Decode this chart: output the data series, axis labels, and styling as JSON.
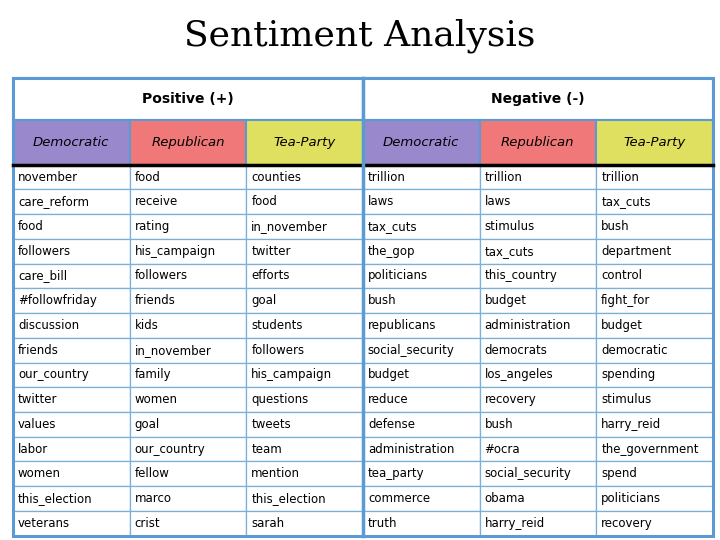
{
  "title": "Sentiment Analysis",
  "group_headers": [
    "Positive (+)",
    "Negative (-)"
  ],
  "row_headers": [
    "Democratic",
    "Republican",
    "Tea-Party",
    "Democratic",
    "Republican",
    "Tea-Party"
  ],
  "header_colors": [
    "#9988cc",
    "#f07878",
    "#e0e060",
    "#9988cc",
    "#f07878",
    "#e0e060"
  ],
  "rows": [
    [
      "november",
      "food",
      "counties",
      "trillion",
      "trillion",
      "trillion"
    ],
    [
      "care_reform",
      "receive",
      "food",
      "laws",
      "laws",
      "tax_cuts"
    ],
    [
      "food",
      "rating",
      "in_november",
      "tax_cuts",
      "stimulus",
      "bush"
    ],
    [
      "followers",
      "his_campaign",
      "twitter",
      "the_gop",
      "tax_cuts",
      "department"
    ],
    [
      "care_bill",
      "followers",
      "efforts",
      "politicians",
      "this_country",
      "control"
    ],
    [
      "#followfriday",
      "friends",
      "goal",
      "bush",
      "budget",
      "fight_for"
    ],
    [
      "discussion",
      "kids",
      "students",
      "republicans",
      "administration",
      "budget"
    ],
    [
      "friends",
      "in_november",
      "followers",
      "social_security",
      "democrats",
      "democratic"
    ],
    [
      "our_country",
      "family",
      "his_campaign",
      "budget",
      "los_angeles",
      "spending"
    ],
    [
      "twitter",
      "women",
      "questions",
      "reduce",
      "recovery",
      "stimulus"
    ],
    [
      "values",
      "goal",
      "tweets",
      "defense",
      "bush",
      "harry_reid"
    ],
    [
      "labor",
      "our_country",
      "team",
      "administration",
      "#ocra",
      "the_government"
    ],
    [
      "women",
      "fellow",
      "mention",
      "tea_party",
      "social_security",
      "spend"
    ],
    [
      "this_election",
      "marco",
      "this_election",
      "commerce",
      "obama",
      "politicians"
    ],
    [
      "veterans",
      "crist",
      "sarah",
      "truth",
      "harry_reid",
      "recovery"
    ]
  ],
  "bg_color": "#ffffff",
  "border_color": "#5b9bd5",
  "grid_color": "#7ab0d8",
  "title_fontsize": 26,
  "group_header_fontsize": 10,
  "col_header_fontsize": 9.5,
  "data_fontsize": 8.5
}
